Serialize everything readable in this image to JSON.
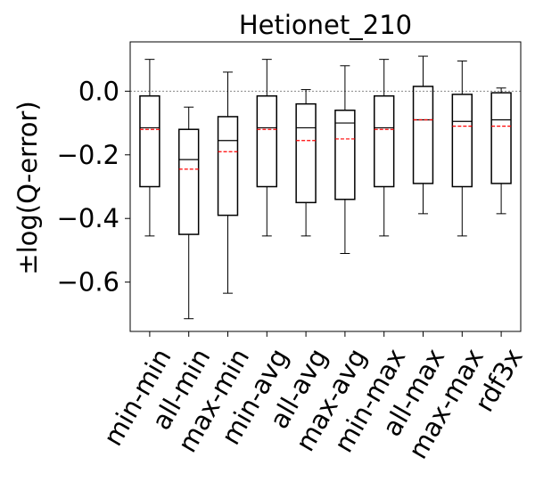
{
  "chart_data": {
    "type": "box",
    "title": "Hetionet_210",
    "ylabel": "±log(Q-error)",
    "xlabel": "",
    "categories": [
      "min-min",
      "all-min",
      "max-min",
      "min-avg",
      "all-avg",
      "max-avg",
      "min-max",
      "all-max",
      "max-max",
      "rdf3x"
    ],
    "boxes": [
      {
        "whisker_low": -0.455,
        "q1": -0.3,
        "median": -0.115,
        "mean": -0.12,
        "q3": -0.015,
        "whisker_high": 0.1
      },
      {
        "whisker_low": -0.715,
        "q1": -0.45,
        "median": -0.215,
        "mean": -0.245,
        "q3": -0.12,
        "whisker_high": -0.05
      },
      {
        "whisker_low": -0.635,
        "q1": -0.39,
        "median": -0.155,
        "mean": -0.19,
        "q3": -0.08,
        "whisker_high": 0.06
      },
      {
        "whisker_low": -0.455,
        "q1": -0.3,
        "median": -0.115,
        "mean": -0.12,
        "q3": -0.015,
        "whisker_high": 0.1
      },
      {
        "whisker_low": -0.455,
        "q1": -0.35,
        "median": -0.115,
        "mean": -0.155,
        "q3": -0.04,
        "whisker_high": 0.005
      },
      {
        "whisker_low": -0.51,
        "q1": -0.34,
        "median": -0.1,
        "mean": -0.15,
        "q3": -0.06,
        "whisker_high": 0.08
      },
      {
        "whisker_low": -0.455,
        "q1": -0.3,
        "median": -0.115,
        "mean": -0.12,
        "q3": -0.015,
        "whisker_high": 0.1
      },
      {
        "whisker_low": -0.385,
        "q1": -0.29,
        "median": -0.09,
        "mean": -0.09,
        "q3": 0.015,
        "whisker_high": 0.11
      },
      {
        "whisker_low": -0.455,
        "q1": -0.3,
        "median": -0.095,
        "mean": -0.11,
        "q3": -0.01,
        "whisker_high": 0.095
      },
      {
        "whisker_low": -0.385,
        "q1": -0.29,
        "median": -0.09,
        "mean": -0.11,
        "q3": -0.005,
        "whisker_high": 0.01
      }
    ],
    "ylim": [
      -0.755,
      0.155
    ],
    "yticks": [
      0.0,
      -0.2,
      -0.4,
      -0.6
    ],
    "ytick_labels": [
      "0.0",
      "−0.2",
      "−0.4",
      "−0.6"
    ],
    "reference_line": 0.0,
    "colors": {
      "box": "#000000",
      "median": "#000000",
      "mean": "#ff0000",
      "reference_line": "#888888"
    },
    "grid": false,
    "legend": "none"
  }
}
